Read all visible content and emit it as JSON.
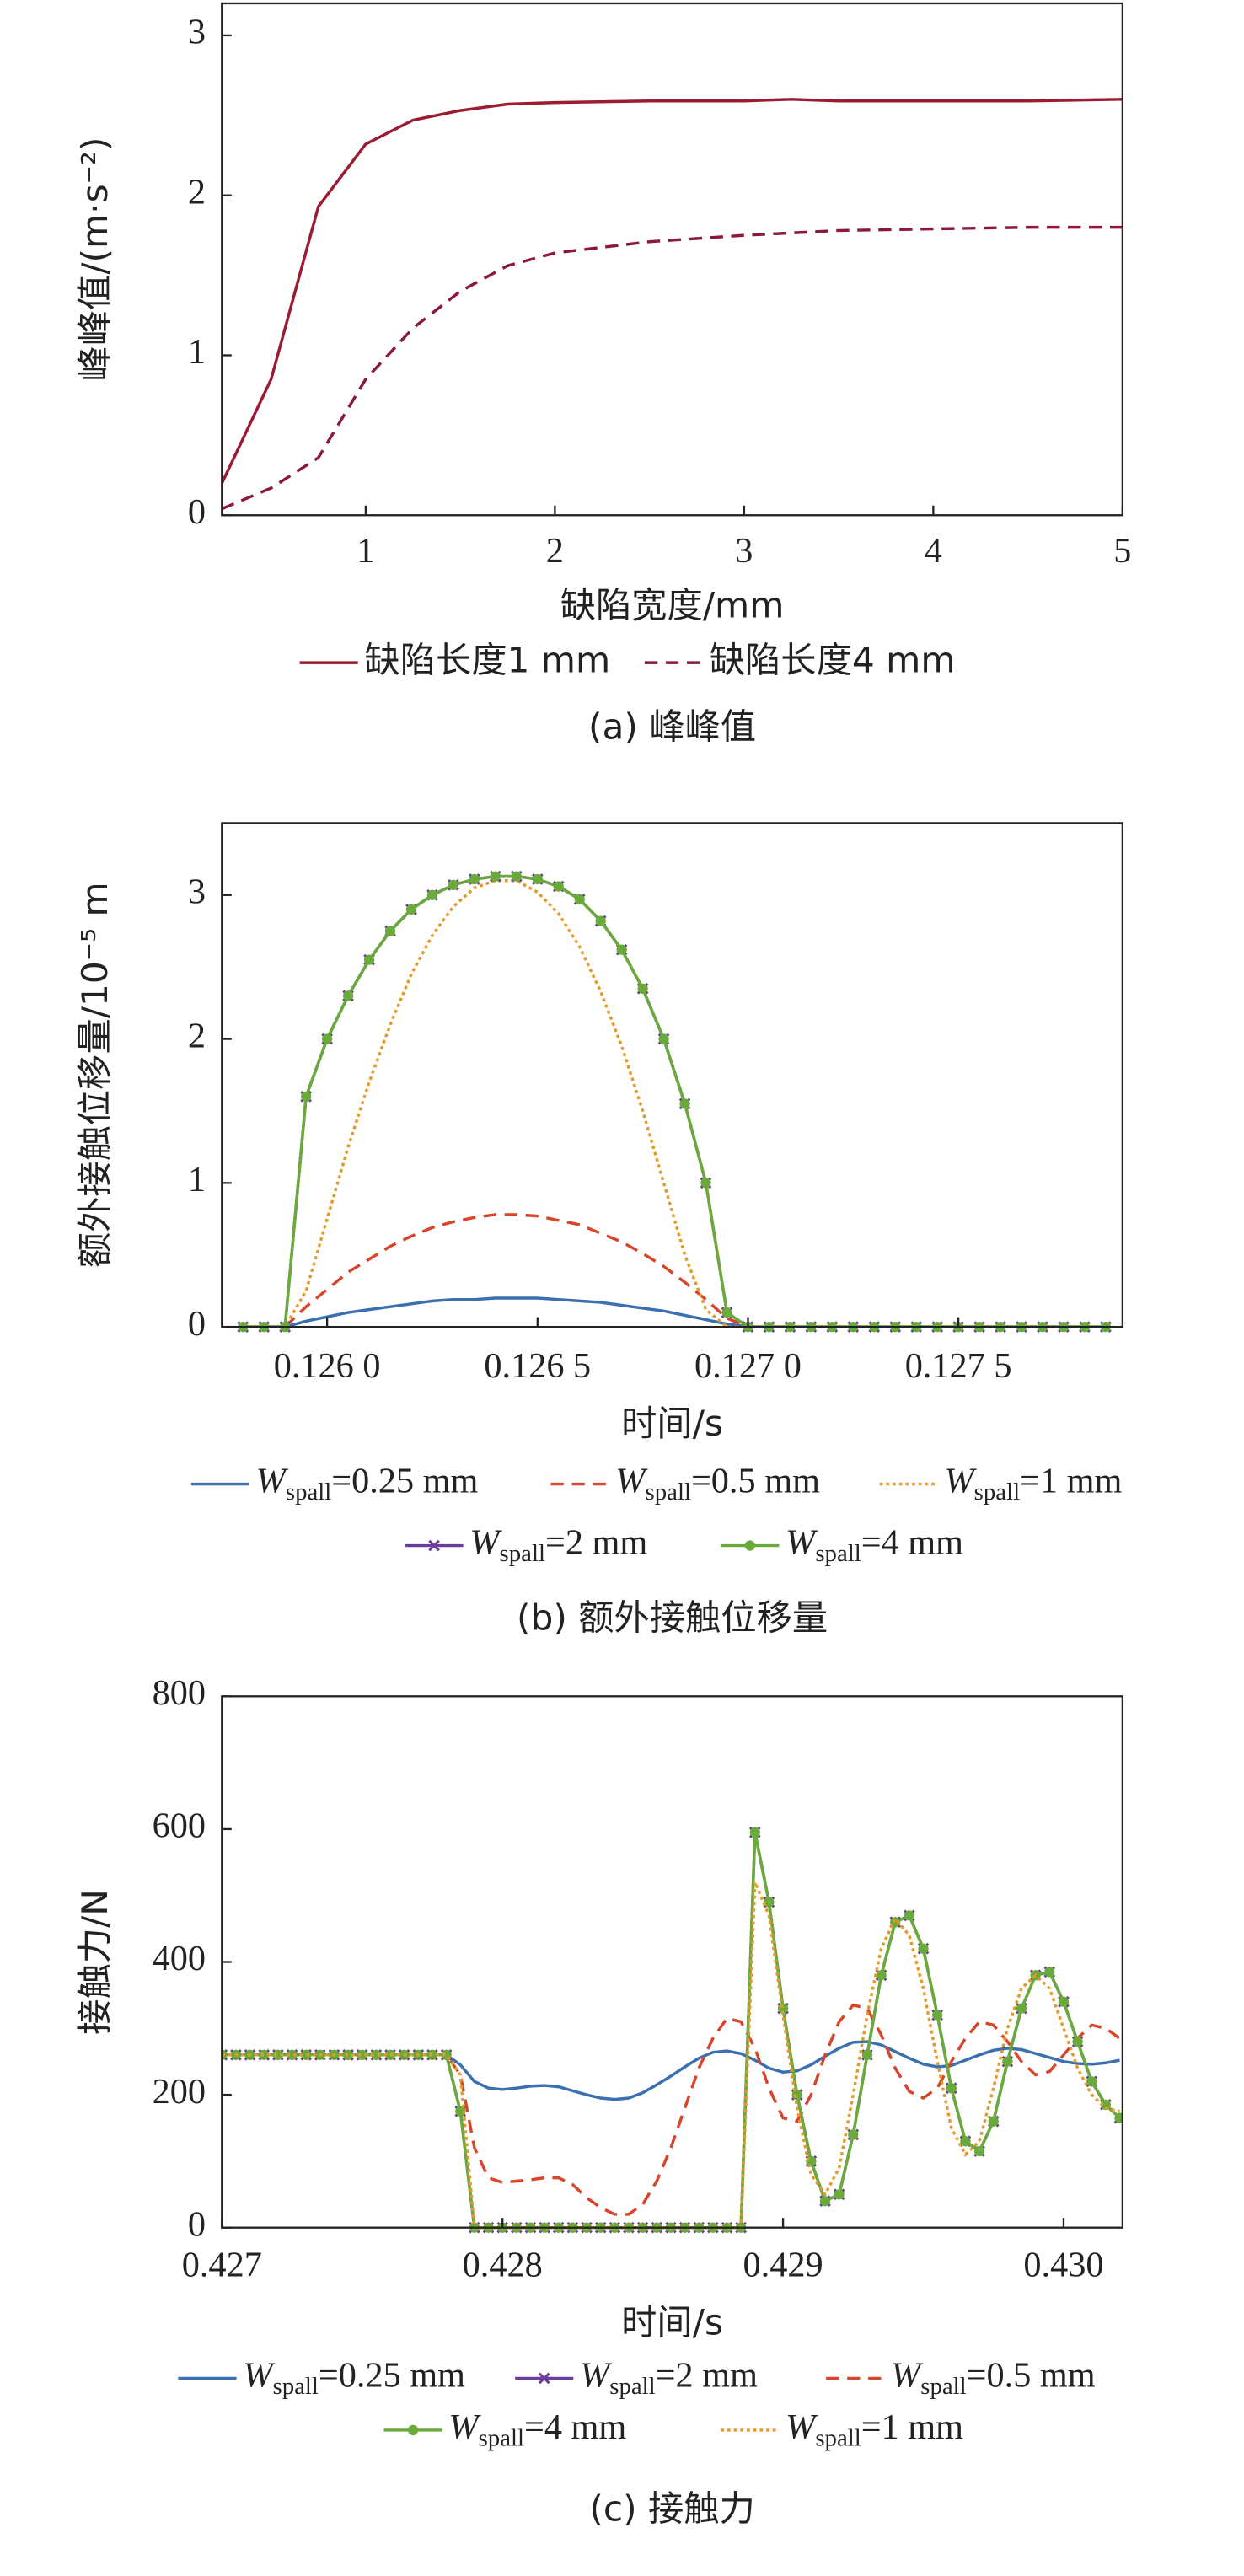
{
  "chart_data": [
    {
      "type": "line",
      "caption": "(a) 峰峰值",
      "xlabel": "缺陷宽度/mm",
      "ylabel": "峰峰值/(m·s⁻²)",
      "xlim": [
        0.24,
        5
      ],
      "ylim": [
        0,
        3.2
      ],
      "xticks": [
        1,
        2,
        3,
        4,
        5
      ],
      "yticks": [
        0,
        1,
        2,
        3
      ],
      "series": [
        {
          "name": "缺陷长度1 mm",
          "color": "#9b1b30",
          "dash": "solid",
          "x": [
            0.24,
            0.5,
            0.75,
            1,
            1.25,
            1.5,
            1.75,
            2,
            2.5,
            3,
            3.25,
            3.5,
            4,
            4.5,
            5
          ],
          "values": [
            0.2,
            0.85,
            1.93,
            2.32,
            2.47,
            2.53,
            2.57,
            2.58,
            2.59,
            2.59,
            2.6,
            2.59,
            2.59,
            2.59,
            2.6
          ]
        },
        {
          "name": "缺陷长度4 mm",
          "color": "#8b1a3a",
          "dash": "dashed",
          "x": [
            0.24,
            0.5,
            0.75,
            1,
            1.25,
            1.5,
            1.75,
            2,
            2.5,
            3,
            3.5,
            4,
            4.5,
            5
          ],
          "values": [
            0.04,
            0.17,
            0.36,
            0.85,
            1.17,
            1.4,
            1.56,
            1.64,
            1.71,
            1.75,
            1.78,
            1.79,
            1.8,
            1.8
          ]
        }
      ]
    },
    {
      "type": "line",
      "caption": "(b) 额外接触位移量",
      "xlabel": "时间/s",
      "ylabel": "额外接触位移量/10⁻⁵ m",
      "xlim": [
        0.12575,
        0.12789
      ],
      "ylim": [
        0,
        3.5
      ],
      "xticks": [
        {
          "value": 0.126,
          "label": "0.126 0"
        },
        {
          "value": 0.1265,
          "label": "0.126 5"
        },
        {
          "value": 0.127,
          "label": "0.127 0"
        },
        {
          "value": 0.1275,
          "label": "0.127 5"
        }
      ],
      "yticks": [
        0,
        1,
        2,
        3
      ],
      "x": [
        0.1258,
        0.12585,
        0.1259,
        0.12595,
        0.126,
        0.12605,
        0.1261,
        0.12615,
        0.1262,
        0.12625,
        0.1263,
        0.12635,
        0.1264,
        0.12645,
        0.1265,
        0.12655,
        0.1266,
        0.12665,
        0.1267,
        0.12675,
        0.1268,
        0.12685,
        0.1269,
        0.12695,
        0.127,
        0.12705,
        0.1271,
        0.12715,
        0.1272,
        0.12725,
        0.1273,
        0.12735,
        0.1274,
        0.12745,
        0.1275,
        0.12755,
        0.1276,
        0.12765,
        0.1277,
        0.12775,
        0.1278,
        0.12785
      ],
      "series": [
        {
          "name": "Wspall=0.25 mm",
          "color": "#3a6fb0",
          "dash": "solid",
          "values": [
            0,
            0,
            0,
            0.04,
            0.07,
            0.1,
            0.12,
            0.14,
            0.16,
            0.18,
            0.19,
            0.19,
            0.2,
            0.2,
            0.2,
            0.19,
            0.18,
            0.17,
            0.15,
            0.13,
            0.11,
            0.08,
            0.05,
            0.02,
            0,
            0,
            0,
            0,
            0,
            0,
            0,
            0,
            0,
            0,
            0,
            0,
            0,
            0,
            0,
            0,
            0,
            0
          ]
        },
        {
          "name": "Wspall=0.5 mm",
          "color": "#d9452b",
          "dash": "dashed",
          "values": [
            0,
            0,
            0,
            0.14,
            0.26,
            0.38,
            0.47,
            0.56,
            0.63,
            0.69,
            0.73,
            0.76,
            0.78,
            0.78,
            0.77,
            0.74,
            0.71,
            0.65,
            0.59,
            0.51,
            0.42,
            0.31,
            0.19,
            0.06,
            0,
            0,
            0,
            0,
            0,
            0,
            0,
            0,
            0,
            0,
            0,
            0,
            0,
            0,
            0,
            0,
            0,
            0
          ]
        },
        {
          "name": "Wspall=1 mm",
          "color": "#e39a2a",
          "dash": "dotted",
          "values": [
            0,
            0,
            0,
            0.25,
            0.75,
            1.25,
            1.7,
            2.1,
            2.45,
            2.72,
            2.92,
            3.05,
            3.1,
            3.1,
            3.02,
            2.87,
            2.64,
            2.33,
            1.95,
            1.5,
            1.0,
            0.5,
            0.12,
            0,
            0,
            0,
            0,
            0,
            0,
            0,
            0,
            0,
            0,
            0,
            0,
            0,
            0,
            0,
            0,
            0,
            0,
            0
          ]
        },
        {
          "name": "Wspall=2 mm",
          "color": "#6a3d9a",
          "dash": "solid",
          "marker": "x",
          "values": [
            0,
            0,
            0,
            1.6,
            2.0,
            2.3,
            2.55,
            2.75,
            2.9,
            3.0,
            3.07,
            3.11,
            3.13,
            3.13,
            3.11,
            3.06,
            2.97,
            2.82,
            2.62,
            2.35,
            2.0,
            1.55,
            1.0,
            0.1,
            0,
            0,
            0,
            0,
            0,
            0,
            0,
            0,
            0,
            0,
            0,
            0,
            0,
            0,
            0,
            0,
            0,
            0
          ]
        },
        {
          "name": "Wspall=4 mm",
          "color": "#6aaa3a",
          "dash": "solid",
          "marker": "circle",
          "values": [
            0,
            0,
            0,
            1.6,
            2.0,
            2.3,
            2.55,
            2.75,
            2.9,
            3.0,
            3.07,
            3.11,
            3.13,
            3.13,
            3.11,
            3.06,
            2.97,
            2.82,
            2.62,
            2.35,
            2.0,
            1.55,
            1.0,
            0.1,
            0,
            0,
            0,
            0,
            0,
            0,
            0,
            0,
            0,
            0,
            0,
            0,
            0,
            0,
            0,
            0,
            0,
            0
          ]
        }
      ]
    },
    {
      "type": "line",
      "caption": "(c) 接触力",
      "xlabel": "时间/s",
      "ylabel": "接触力/N",
      "xlim": [
        0.427,
        0.43021
      ],
      "ylim": [
        0,
        800
      ],
      "xticks": [
        0.427,
        0.428,
        0.429,
        {
          "value": 0.43,
          "label": "0.430"
        }
      ],
      "yticks": [
        0,
        200,
        400,
        600,
        800
      ],
      "x": [
        0.427,
        0.42705,
        0.4271,
        0.42715,
        0.4272,
        0.42725,
        0.4273,
        0.42735,
        0.4274,
        0.42745,
        0.4275,
        0.42755,
        0.4276,
        0.42765,
        0.4277,
        0.42775,
        0.4278,
        0.42785,
        0.4279,
        0.42795,
        0.428,
        0.42805,
        0.4281,
        0.42815,
        0.4282,
        0.42825,
        0.4283,
        0.42835,
        0.4284,
        0.42845,
        0.4285,
        0.42855,
        0.4286,
        0.42865,
        0.4287,
        0.42875,
        0.4288,
        0.42885,
        0.4289,
        0.42895,
        0.429,
        0.42905,
        0.4291,
        0.42915,
        0.4292,
        0.42925,
        0.4293,
        0.42935,
        0.4294,
        0.42945,
        0.4295,
        0.42955,
        0.4296,
        0.42965,
        0.4297,
        0.42975,
        0.4298,
        0.42985,
        0.4299,
        0.42995,
        0.43,
        0.43005,
        0.4301,
        0.43015,
        0.4302
      ],
      "series": [
        {
          "name": "Wspall=0.25 mm",
          "color": "#3a6fb0",
          "dash": "solid",
          "values": [
            260,
            260,
            260,
            260,
            260,
            260,
            260,
            260,
            260,
            260,
            260,
            260,
            260,
            260,
            260,
            260,
            260,
            245,
            220,
            210,
            208,
            210,
            213,
            214,
            212,
            206,
            200,
            195,
            193,
            195,
            203,
            215,
            228,
            242,
            255,
            264,
            266,
            262,
            252,
            240,
            234,
            236,
            245,
            258,
            270,
            279,
            280,
            275,
            265,
            255,
            246,
            242,
            244,
            252,
            260,
            267,
            270,
            268,
            262,
            256,
            250,
            247,
            246,
            248,
            252
          ]
        },
        {
          "name": "Wspall=2 mm",
          "color": "#6a3d9a",
          "dash": "solid",
          "marker": "x",
          "values": [
            260,
            260,
            260,
            260,
            260,
            260,
            260,
            260,
            260,
            260,
            260,
            260,
            260,
            260,
            260,
            260,
            260,
            175,
            0,
            0,
            0,
            0,
            0,
            0,
            0,
            0,
            0,
            0,
            0,
            0,
            0,
            0,
            0,
            0,
            0,
            0,
            0,
            0,
            595,
            490,
            330,
            200,
            100,
            40,
            50,
            140,
            260,
            380,
            460,
            470,
            420,
            320,
            210,
            130,
            115,
            160,
            250,
            330,
            380,
            385,
            340,
            280,
            220,
            185,
            165
          ]
        },
        {
          "name": "Wspall=0.5 mm",
          "color": "#d9452b",
          "dash": "dashed",
          "values": [
            260,
            260,
            260,
            260,
            260,
            260,
            260,
            260,
            260,
            260,
            260,
            260,
            260,
            260,
            260,
            260,
            260,
            230,
            120,
            75,
            68,
            70,
            72,
            75,
            75,
            65,
            45,
            30,
            20,
            20,
            35,
            70,
            120,
            180,
            240,
            285,
            315,
            310,
            270,
            210,
            165,
            160,
            200,
            260,
            310,
            335,
            330,
            290,
            240,
            205,
            195,
            210,
            250,
            285,
            310,
            305,
            280,
            250,
            230,
            235,
            260,
            285,
            305,
            300,
            285
          ]
        },
        {
          "name": "Wspall=4 mm",
          "color": "#6aaa3a",
          "dash": "solid",
          "marker": "circle",
          "values": [
            260,
            260,
            260,
            260,
            260,
            260,
            260,
            260,
            260,
            260,
            260,
            260,
            260,
            260,
            260,
            260,
            260,
            175,
            0,
            0,
            0,
            0,
            0,
            0,
            0,
            0,
            0,
            0,
            0,
            0,
            0,
            0,
            0,
            0,
            0,
            0,
            0,
            0,
            595,
            490,
            330,
            200,
            100,
            40,
            50,
            140,
            260,
            380,
            460,
            470,
            420,
            320,
            210,
            130,
            115,
            160,
            250,
            330,
            380,
            385,
            340,
            280,
            220,
            185,
            165
          ]
        },
        {
          "name": "Wspall=1 mm",
          "color": "#e39a2a",
          "dash": "dotted",
          "values": [
            260,
            260,
            260,
            260,
            260,
            260,
            260,
            260,
            260,
            260,
            260,
            260,
            260,
            260,
            260,
            260,
            260,
            230,
            0,
            0,
            0,
            0,
            0,
            0,
            0,
            0,
            0,
            0,
            0,
            0,
            0,
            0,
            0,
            0,
            0,
            0,
            0,
            0,
            520,
            470,
            320,
            180,
            80,
            50,
            90,
            200,
            320,
            420,
            465,
            440,
            360,
            250,
            150,
            110,
            130,
            210,
            300,
            360,
            380,
            360,
            300,
            240,
            200,
            180,
            175
          ]
        }
      ]
    }
  ]
}
